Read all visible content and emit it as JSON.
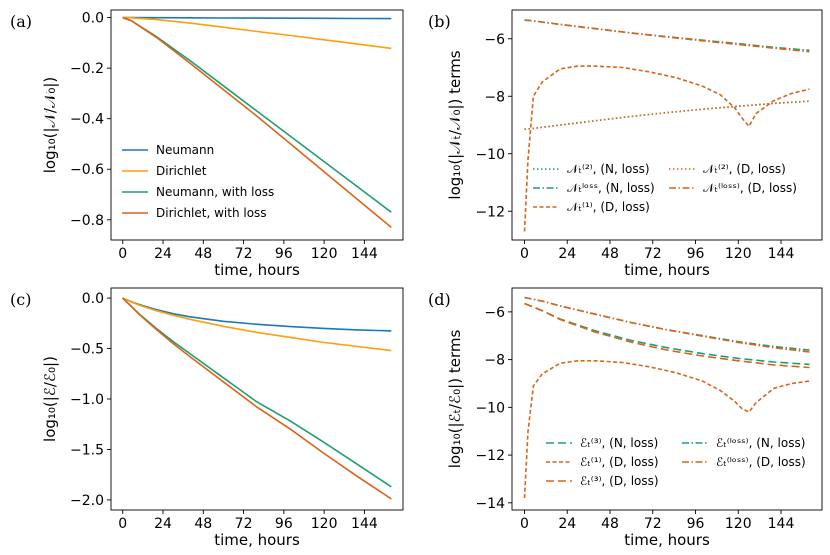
{
  "colors": {
    "neumann": "#1f77b4",
    "dirichlet": "#ff9f0a",
    "neumann_loss": "#1f9e73",
    "dirichlet_loss": "#d9641c"
  },
  "chart_data": [
    {
      "id": "a",
      "panel_label": "(a)",
      "type": "line",
      "xlabel": "time, hours",
      "ylabel": "log₁₀(|𝒩/𝒩₀|)",
      "xticks": [
        "0",
        "24",
        "48",
        "72",
        "96",
        "120",
        "144"
      ],
      "yticks": [
        "0.0",
        "−0.2",
        "−0.4",
        "−0.6",
        "−0.8"
      ],
      "xlim": [
        -7,
        167
      ],
      "ylim": [
        -0.88,
        0.03
      ],
      "legend_position": "lower-left",
      "series": [
        {
          "name": "Neumann",
          "style": "solid",
          "color": "#1f77b4",
          "x": [
            0,
            5,
            20,
            40,
            60,
            80,
            100,
            120,
            140,
            160
          ],
          "y": [
            0.0,
            0.0,
            -0.0005,
            -0.001,
            -0.0015,
            -0.002,
            -0.0025,
            -0.003,
            -0.0035,
            -0.004
          ]
        },
        {
          "name": "Dirichlet",
          "style": "solid",
          "color": "#ff9f0a",
          "x": [
            0,
            5,
            20,
            40,
            60,
            80,
            100,
            120,
            140,
            160
          ],
          "y": [
            0.0,
            -0.001,
            -0.008,
            -0.022,
            -0.038,
            -0.055,
            -0.071,
            -0.088,
            -0.105,
            -0.122
          ]
        },
        {
          "name": "Neumann, with loss",
          "style": "solid",
          "color": "#1f9e73",
          "x": [
            0,
            5,
            20,
            40,
            60,
            80,
            100,
            120,
            140,
            160
          ],
          "y": [
            0.0,
            -0.012,
            -0.075,
            -0.17,
            -0.27,
            -0.37,
            -0.47,
            -0.57,
            -0.67,
            -0.77
          ]
        },
        {
          "name": "Dirichlet, with loss",
          "style": "solid",
          "color": "#d9641c",
          "x": [
            0,
            5,
            20,
            40,
            60,
            80,
            100,
            120,
            140,
            160
          ],
          "y": [
            0.0,
            -0.012,
            -0.078,
            -0.18,
            -0.285,
            -0.39,
            -0.5,
            -0.61,
            -0.72,
            -0.83
          ]
        }
      ]
    },
    {
      "id": "b",
      "panel_label": "(b)",
      "type": "line",
      "xlabel": "time, hours",
      "ylabel": "log₁₀(|𝒩ₜ/𝒩₀|) terms",
      "xticks": [
        "0",
        "24",
        "48",
        "72",
        "96",
        "120",
        "144"
      ],
      "yticks": [
        "−6",
        "−8",
        "−10",
        "−12"
      ],
      "xlim": [
        -7,
        167
      ],
      "ylim": [
        -13.0,
        -5.0
      ],
      "legend_position": "lower-center",
      "legend_cols": [
        [
          0,
          1,
          2
        ],
        [
          3,
          4
        ]
      ],
      "series": [
        {
          "name": "𝒩ₜ⁽²⁾, (N, loss)",
          "style": "dotted",
          "color": "#1f9e73",
          "x": [
            0,
            5,
            20,
            40,
            60,
            80,
            100,
            120,
            140,
            160
          ],
          "y": [
            -9.15,
            -9.12,
            -9.0,
            -8.85,
            -8.7,
            -8.57,
            -8.45,
            -8.35,
            -8.25,
            -8.17
          ]
        },
        {
          "name": "𝒩ₜˡᵒˢˢ, (N, loss)",
          "style": "dashdot",
          "color": "#1f9e73",
          "x": [
            0,
            5,
            20,
            40,
            60,
            80,
            100,
            120,
            140,
            160
          ],
          "y": [
            -5.35,
            -5.38,
            -5.5,
            -5.65,
            -5.8,
            -5.93,
            -6.05,
            -6.17,
            -6.3,
            -6.4
          ]
        },
        {
          "name": "𝒩ₜ⁽¹⁾, (D, loss)",
          "style": "dashed",
          "color": "#d9641c",
          "x": [
            0,
            2,
            5,
            10,
            20,
            30,
            40,
            55,
            70,
            85,
            100,
            110,
            118,
            122,
            126,
            130,
            140,
            150,
            160
          ],
          "y": [
            -12.7,
            -10.2,
            -8.0,
            -7.5,
            -7.05,
            -6.95,
            -6.95,
            -7.0,
            -7.15,
            -7.35,
            -7.65,
            -7.95,
            -8.4,
            -8.75,
            -9.05,
            -8.6,
            -8.15,
            -7.9,
            -7.75
          ]
        },
        {
          "name": "𝒩ₜ⁽²⁾, (D, loss)",
          "style": "dotted",
          "color": "#d9641c",
          "x": [
            0,
            5,
            20,
            40,
            60,
            80,
            100,
            120,
            140,
            160
          ],
          "y": [
            -9.15,
            -9.12,
            -9.0,
            -8.85,
            -8.7,
            -8.57,
            -8.45,
            -8.35,
            -8.25,
            -8.17
          ]
        },
        {
          "name": "𝒩ₜ⁽ˡᵒˢˢ⁾, (D, loss)",
          "style": "dashdot",
          "color": "#d9641c",
          "x": [
            0,
            5,
            20,
            40,
            60,
            80,
            100,
            120,
            140,
            160
          ],
          "y": [
            -5.35,
            -5.38,
            -5.5,
            -5.65,
            -5.8,
            -5.94,
            -6.07,
            -6.2,
            -6.33,
            -6.45
          ]
        }
      ]
    },
    {
      "id": "c",
      "panel_label": "(c)",
      "type": "line",
      "xlabel": "time, hours",
      "ylabel": "log₁₀(|ℰ/ℰ₀|)",
      "xticks": [
        "0",
        "24",
        "48",
        "72",
        "96",
        "120",
        "144"
      ],
      "yticks": [
        "0.0",
        "−0.5",
        "−1.0",
        "−1.5",
        "−2.0"
      ],
      "xlim": [
        -7,
        167
      ],
      "ylim": [
        -2.1,
        0.1
      ],
      "legend_position": "none",
      "series": [
        {
          "name": "Neumann",
          "style": "solid",
          "color": "#1f77b4",
          "x": [
            0,
            5,
            10,
            20,
            30,
            40,
            60,
            80,
            100,
            120,
            140,
            160
          ],
          "y": [
            0.0,
            -0.035,
            -0.065,
            -0.115,
            -0.155,
            -0.185,
            -0.23,
            -0.26,
            -0.283,
            -0.3,
            -0.315,
            -0.325
          ]
        },
        {
          "name": "Dirichlet",
          "style": "solid",
          "color": "#ff9f0a",
          "x": [
            0,
            5,
            10,
            20,
            30,
            40,
            60,
            80,
            100,
            120,
            140,
            160
          ],
          "y": [
            0.0,
            -0.038,
            -0.07,
            -0.125,
            -0.17,
            -0.21,
            -0.28,
            -0.34,
            -0.39,
            -0.44,
            -0.48,
            -0.52
          ]
        },
        {
          "name": "Neumann, with loss",
          "style": "solid",
          "color": "#1f9e73",
          "x": [
            0,
            5,
            10,
            20,
            30,
            40,
            60,
            80,
            100,
            120,
            140,
            160
          ],
          "y": [
            0.0,
            -0.08,
            -0.16,
            -0.3,
            -0.43,
            -0.55,
            -0.79,
            -1.03,
            -1.22,
            -1.43,
            -1.65,
            -1.87
          ]
        },
        {
          "name": "Dirichlet, with loss",
          "style": "solid",
          "color": "#d9641c",
          "x": [
            0,
            5,
            10,
            20,
            30,
            40,
            60,
            80,
            100,
            120,
            140,
            160
          ],
          "y": [
            0.0,
            -0.08,
            -0.165,
            -0.31,
            -0.45,
            -0.58,
            -0.83,
            -1.08,
            -1.3,
            -1.54,
            -1.77,
            -1.99
          ]
        }
      ]
    },
    {
      "id": "d",
      "panel_label": "(d)",
      "type": "line",
      "xlabel": "time, hours",
      "ylabel": "log₁₀(|ℰₜ/ℰ₀|) terms",
      "xticks": [
        "0",
        "24",
        "48",
        "72",
        "96",
        "120",
        "144"
      ],
      "yticks": [
        "−6",
        "−8",
        "−10",
        "−12",
        "−14"
      ],
      "xlim": [
        -7,
        167
      ],
      "ylim": [
        -14.3,
        -5.0
      ],
      "legend_position": "lower-right",
      "legend_cols": [
        [
          0,
          1,
          2
        ],
        [
          3,
          4
        ]
      ],
      "series": [
        {
          "name": "ℰₜ⁽³⁾, (N, loss)",
          "style": "dashed_long",
          "color": "#1f9e73",
          "x": [
            0,
            10,
            20,
            40,
            60,
            80,
            100,
            120,
            140,
            160
          ],
          "y": [
            -5.65,
            -5.95,
            -6.3,
            -6.8,
            -7.2,
            -7.5,
            -7.75,
            -7.95,
            -8.1,
            -8.2
          ]
        },
        {
          "name": "ℰₜ⁽¹⁾, (D, loss)",
          "style": "dashed",
          "color": "#d9641c",
          "x": [
            0,
            2,
            5,
            10,
            20,
            30,
            40,
            55,
            70,
            85,
            100,
            110,
            118,
            122,
            126,
            130,
            140,
            150,
            160
          ],
          "y": [
            -13.8,
            -11.0,
            -9.1,
            -8.6,
            -8.15,
            -8.05,
            -8.05,
            -8.12,
            -8.3,
            -8.55,
            -8.9,
            -9.3,
            -9.75,
            -10.05,
            -10.2,
            -9.8,
            -9.2,
            -9.0,
            -8.9
          ]
        },
        {
          "name": "ℰₜ⁽³⁾, (D, loss)",
          "style": "dashed_long",
          "color": "#d9641c",
          "x": [
            0,
            10,
            20,
            40,
            60,
            80,
            100,
            120,
            140,
            160
          ],
          "y": [
            -5.65,
            -5.95,
            -6.32,
            -6.85,
            -7.27,
            -7.6,
            -7.85,
            -8.05,
            -8.22,
            -8.33
          ]
        },
        {
          "name": "ℰₜ⁽ˡᵒˢˢ⁾, (N, loss)",
          "style": "dashdot",
          "color": "#1f9e73",
          "x": [
            0,
            10,
            20,
            40,
            60,
            80,
            100,
            120,
            140,
            160
          ],
          "y": [
            -5.4,
            -5.55,
            -5.75,
            -6.1,
            -6.45,
            -6.75,
            -7.0,
            -7.25,
            -7.45,
            -7.6
          ]
        },
        {
          "name": "ℰₜ⁽ˡᵒˢˢ⁾, (D, loss)",
          "style": "dashdot",
          "color": "#d9641c",
          "x": [
            0,
            10,
            20,
            40,
            60,
            80,
            100,
            120,
            140,
            160
          ],
          "y": [
            -5.4,
            -5.55,
            -5.75,
            -6.1,
            -6.45,
            -6.75,
            -7.02,
            -7.28,
            -7.5,
            -7.68
          ]
        }
      ]
    }
  ]
}
